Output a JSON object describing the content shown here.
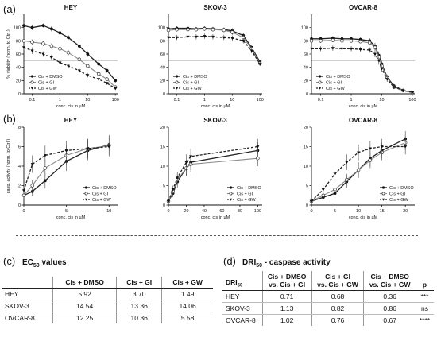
{
  "panels": {
    "a": "(a)",
    "b": "(b)",
    "c": "(c)",
    "d": "(d)"
  },
  "colors": {
    "ref_line": "#bdbdbd",
    "line": "#222222",
    "gi_line": "#8a8a8a",
    "separator": "#555555"
  },
  "chart_data": [
    {
      "id": "a-hey",
      "type": "line",
      "title": "HEY",
      "xlabel": "conc. cis in µM",
      "ylabel": "% viability (norm. to Ctrl.)",
      "xscale": "log",
      "xlim": [
        0.05,
        120
      ],
      "ylim": [
        0,
        120
      ],
      "xticks": [
        0.1,
        1,
        10,
        100
      ],
      "xtick_labels": [
        "0.1",
        "1",
        "10",
        "100"
      ],
      "yticks": [
        0,
        20,
        40,
        60,
        80,
        100
      ],
      "ytick_labels": [
        "0",
        "20",
        "40",
        "60",
        "80",
        "100"
      ],
      "ref_line": 50,
      "legend": [
        "Cis + DMSO",
        "Cis + GI",
        "Cis + GW"
      ],
      "legend_position": "bottom-left",
      "series": [
        {
          "name": "Cis + DMSO",
          "marker": "filled-circle",
          "style": "solid",
          "x": [
            0.05,
            0.1,
            0.25,
            0.5,
            1,
            2,
            5,
            10,
            25,
            50,
            100
          ],
          "y": [
            103,
            100,
            103,
            98,
            92,
            85,
            72,
            60,
            45,
            35,
            20
          ],
          "err": [
            5,
            4,
            3,
            4,
            4,
            4,
            3,
            4,
            4,
            3,
            3
          ]
        },
        {
          "name": "Cis + GI",
          "marker": "open-circle",
          "style": "solid-gray",
          "x": [
            0.05,
            0.1,
            0.25,
            0.5,
            1,
            2,
            5,
            10,
            25,
            50,
            100
          ],
          "y": [
            80,
            78,
            76,
            72,
            68,
            62,
            52,
            42,
            30,
            22,
            10
          ],
          "err": [
            5,
            4,
            4,
            4,
            4,
            4,
            3,
            3,
            3,
            3,
            2
          ]
        },
        {
          "name": "Cis + GW",
          "marker": "triangle",
          "style": "dashed",
          "x": [
            0.05,
            0.1,
            0.25,
            0.5,
            1,
            2,
            5,
            10,
            25,
            50,
            100
          ],
          "y": [
            70,
            65,
            60,
            55,
            47,
            42,
            35,
            28,
            22,
            16,
            8
          ],
          "err": [
            6,
            5,
            4,
            4,
            4,
            3,
            3,
            3,
            3,
            2,
            2
          ]
        }
      ]
    },
    {
      "id": "a-skov3",
      "type": "line",
      "title": "SKOV-3",
      "xlabel": "conc. cis in µM",
      "ylabel": "",
      "xscale": "log",
      "xlim": [
        0.05,
        120
      ],
      "ylim": [
        0,
        120
      ],
      "xticks": [
        0.1,
        1,
        10,
        100
      ],
      "xtick_labels": [
        "0.1",
        "1",
        "10",
        "100"
      ],
      "yticks": [
        0,
        20,
        40,
        60,
        80,
        100
      ],
      "ytick_labels": [
        "0",
        "20",
        "40",
        "60",
        "80",
        "100"
      ],
      "ref_line": 50,
      "legend": [
        "Cis + DMSO",
        "Cis + GI",
        "Cis + GW"
      ],
      "legend_position": "bottom-left",
      "series": [
        {
          "name": "Cis + DMSO",
          "marker": "filled-circle",
          "style": "solid",
          "x": [
            0.05,
            0.1,
            0.25,
            0.5,
            1,
            2,
            5,
            10,
            25,
            50,
            100
          ],
          "y": [
            98,
            99,
            99,
            98,
            99,
            98,
            97,
            95,
            88,
            70,
            48
          ],
          "err": [
            3,
            3,
            3,
            3,
            3,
            3,
            3,
            4,
            4,
            4,
            3
          ]
        },
        {
          "name": "Cis + GI",
          "marker": "open-circle",
          "style": "solid-gray",
          "x": [
            0.05,
            0.1,
            0.25,
            0.5,
            1,
            2,
            5,
            10,
            25,
            50,
            100
          ],
          "y": [
            96,
            97,
            97,
            97,
            98,
            97,
            96,
            93,
            85,
            68,
            46
          ],
          "err": [
            3,
            3,
            3,
            3,
            3,
            3,
            3,
            4,
            4,
            4,
            3
          ]
        },
        {
          "name": "Cis + GW",
          "marker": "triangle",
          "style": "dashed",
          "x": [
            0.05,
            0.1,
            0.25,
            0.5,
            1,
            2,
            5,
            10,
            25,
            50,
            100
          ],
          "y": [
            85,
            85,
            86,
            86,
            87,
            86,
            85,
            84,
            80,
            65,
            45
          ],
          "err": [
            4,
            4,
            4,
            4,
            4,
            4,
            4,
            4,
            4,
            4,
            3
          ]
        }
      ]
    },
    {
      "id": "a-ovcar8",
      "type": "line",
      "title": "OVCAR-8",
      "xlabel": "conc. cis in µM",
      "ylabel": "",
      "xscale": "log",
      "xlim": [
        0.05,
        120
      ],
      "ylim": [
        0,
        120
      ],
      "xticks": [
        0.1,
        1,
        10,
        100
      ],
      "xtick_labels": [
        "0.1",
        "1",
        "10",
        "100"
      ],
      "yticks": [
        0,
        20,
        40,
        60,
        80,
        100
      ],
      "ytick_labels": [
        "0",
        "20",
        "40",
        "60",
        "80",
        "100"
      ],
      "ref_line": 50,
      "legend": [
        "Cis + DMSO",
        "Cis + GI",
        "Cis + GW"
      ],
      "legend_position": "bottom-left",
      "series": [
        {
          "name": "Cis + DMSO",
          "marker": "filled-circle",
          "style": "solid",
          "x": [
            0.05,
            0.1,
            0.25,
            0.5,
            1,
            2,
            4,
            6,
            8,
            10,
            15,
            25,
            50,
            100
          ],
          "y": [
            83,
            83,
            84,
            83,
            83,
            82,
            80,
            72,
            58,
            45,
            25,
            12,
            5,
            2
          ],
          "err": [
            3,
            3,
            3,
            3,
            3,
            3,
            4,
            5,
            6,
            5,
            4,
            3,
            2,
            1
          ]
        },
        {
          "name": "Cis + GI",
          "marker": "open-circle",
          "style": "solid-gray",
          "x": [
            0.05,
            0.1,
            0.25,
            0.5,
            1,
            2,
            4,
            6,
            8,
            10,
            15,
            25,
            50,
            100
          ],
          "y": [
            80,
            80,
            81,
            80,
            80,
            79,
            77,
            70,
            55,
            42,
            24,
            10,
            5,
            2
          ],
          "err": [
            3,
            3,
            3,
            3,
            3,
            3,
            4,
            5,
            6,
            5,
            4,
            3,
            2,
            1
          ]
        },
        {
          "name": "Cis + GW",
          "marker": "triangle",
          "style": "dashed",
          "x": [
            0.05,
            0.1,
            0.25,
            0.5,
            1,
            2,
            4,
            6,
            8,
            10,
            15,
            25,
            50,
            100
          ],
          "y": [
            68,
            68,
            69,
            68,
            68,
            67,
            66,
            60,
            50,
            38,
            22,
            10,
            5,
            2
          ],
          "err": [
            4,
            4,
            4,
            4,
            4,
            4,
            4,
            5,
            6,
            5,
            4,
            3,
            2,
            1
          ]
        }
      ]
    },
    {
      "id": "b-hey",
      "type": "line",
      "title": "HEY",
      "xlabel": "conc. cis in µM",
      "ylabel": "casp. activity (norm. to Ctrl.)",
      "xscale": "linear",
      "xlim": [
        0,
        11
      ],
      "ylim": [
        0,
        8
      ],
      "xticks": [
        0,
        5,
        10
      ],
      "xtick_labels": [
        "0",
        "5",
        "10"
      ],
      "yticks": [
        0,
        2,
        4,
        6,
        8
      ],
      "ytick_labels": [
        "0",
        "2",
        "4",
        "6",
        "8"
      ],
      "legend": [
        "Cis + DMSO",
        "Cis + GI",
        "Cis + GW"
      ],
      "legend_position": "bottom-right",
      "series": [
        {
          "name": "Cis + DMSO",
          "marker": "filled-circle",
          "style": "solid",
          "x": [
            0,
            1,
            2.5,
            5,
            7.5,
            10
          ],
          "y": [
            1,
            1.4,
            2.5,
            4.5,
            5.6,
            6.2
          ],
          "err": [
            0.3,
            0.5,
            0.8,
            1,
            1,
            1
          ]
        },
        {
          "name": "Cis + GI",
          "marker": "open-circle",
          "style": "solid-gray",
          "x": [
            0,
            1,
            2.5,
            5,
            7.5,
            10
          ],
          "y": [
            1,
            2,
            3.8,
            5.1,
            5.8,
            6.1
          ],
          "err": [
            0.3,
            0.6,
            0.9,
            1,
            1,
            1
          ]
        },
        {
          "name": "Cis + GW",
          "marker": "triangle",
          "style": "dashed",
          "x": [
            0,
            1,
            2.5,
            5,
            7.5,
            10
          ],
          "y": [
            1.5,
            4.2,
            5.1,
            5.6,
            5.8,
            6.0
          ],
          "err": [
            0.4,
            0.9,
            1,
            1,
            1,
            1
          ]
        }
      ]
    },
    {
      "id": "b-skov3",
      "type": "line",
      "title": "SKOV-3",
      "xlabel": "conc. cis in µM",
      "ylabel": "",
      "xscale": "linear",
      "xlim": [
        0,
        105
      ],
      "ylim": [
        0,
        20
      ],
      "xticks": [
        0,
        20,
        40,
        60,
        80,
        100
      ],
      "xtick_labels": [
        "0",
        "20",
        "40",
        "60",
        "80",
        "100"
      ],
      "yticks": [
        0,
        5,
        10,
        15,
        20
      ],
      "ytick_labels": [
        "0",
        "5",
        "10",
        "15",
        "20"
      ],
      "legend": [
        "Cis + DMSO",
        "Cis + GI",
        "Cis + GW"
      ],
      "legend_position": "bottom-right",
      "series": [
        {
          "name": "Cis + DMSO",
          "marker": "filled-circle",
          "style": "solid",
          "x": [
            0,
            5,
            10,
            20,
            25,
            100
          ],
          "y": [
            1,
            3,
            6,
            9.5,
            11,
            14
          ],
          "err": [
            0.3,
            1,
            1.5,
            2,
            2,
            2
          ]
        },
        {
          "name": "Cis + GI",
          "marker": "open-circle",
          "style": "solid-gray",
          "x": [
            0,
            5,
            10,
            20,
            25,
            100
          ],
          "y": [
            1,
            3.5,
            6.5,
            9.5,
            10.5,
            12
          ],
          "err": [
            0.3,
            1,
            1.5,
            2,
            2,
            2
          ]
        },
        {
          "name": "Cis + GW",
          "marker": "triangle",
          "style": "dashed",
          "x": [
            0,
            5,
            10,
            20,
            25,
            100
          ],
          "y": [
            1,
            4,
            7,
            11,
            12.5,
            15
          ],
          "err": [
            0.3,
            1,
            1.5,
            2,
            2,
            2
          ]
        }
      ]
    },
    {
      "id": "b-ovcar8",
      "type": "line",
      "title": "OVCAR-8",
      "xlabel": "conc. cis in µM",
      "ylabel": "",
      "xscale": "linear",
      "xlim": [
        0,
        22
      ],
      "ylim": [
        0,
        20
      ],
      "xticks": [
        0,
        5,
        10,
        15,
        20
      ],
      "xtick_labels": [
        "0",
        "5",
        "10",
        "15",
        "20"
      ],
      "yticks": [
        0,
        5,
        10,
        15,
        20
      ],
      "ytick_labels": [
        "0",
        "5",
        "10",
        "15",
        "20"
      ],
      "legend": [
        "Cis + DMSO",
        "Cis + GI",
        "Cis + GW"
      ],
      "legend_position": "bottom-right",
      "series": [
        {
          "name": "Cis + DMSO",
          "marker": "filled-circle",
          "style": "solid",
          "x": [
            0,
            2.5,
            5,
            7.5,
            10,
            12.5,
            15,
            20
          ],
          "y": [
            1,
            2,
            3,
            6,
            9,
            12,
            14,
            17
          ],
          "err": [
            0.3,
            0.6,
            1,
            1.5,
            2,
            2,
            2,
            2
          ]
        },
        {
          "name": "Cis + GI",
          "marker": "open-circle",
          "style": "solid-gray",
          "x": [
            0,
            2.5,
            5,
            7.5,
            10,
            12.5,
            15,
            20
          ],
          "y": [
            1,
            2.5,
            4,
            6.5,
            9,
            11.5,
            13.5,
            16
          ],
          "err": [
            0.3,
            0.6,
            1,
            1.5,
            2,
            2,
            2,
            2
          ]
        },
        {
          "name": "Cis + GW",
          "marker": "triangle",
          "style": "dashed",
          "x": [
            0,
            2.5,
            5,
            7.5,
            10,
            12.5,
            15,
            20
          ],
          "y": [
            1,
            4,
            8,
            11,
            13.5,
            14.5,
            15,
            15
          ],
          "err": [
            0.3,
            1,
            1.5,
            2,
            2,
            2,
            2,
            2
          ]
        }
      ]
    },
    {
      "id": "c-ec50",
      "type": "table",
      "title": "EC50 values",
      "title_main": "EC",
      "title_sub": "50",
      "title_rest": " values",
      "columns": [
        "",
        "Cis + DMSO",
        "Cis + GI",
        "Cis + GW"
      ],
      "rows": [
        [
          "HEY",
          "5.92",
          "3.70",
          "1.49"
        ],
        [
          "SKOV-3",
          "14.54",
          "13.36",
          "14.06"
        ],
        [
          "OVCAR-8",
          "12.25",
          "10.36",
          "5.58"
        ]
      ]
    },
    {
      "id": "d-dri50",
      "type": "table",
      "title": "DRI50 - caspase activity",
      "title_main": "DRI",
      "title_sub": "50",
      "title_rest": " - caspase activity",
      "columns": [
        "DRI50",
        "Cis + DMSO vs. Cis + GI",
        "Cis + GI vs. Cis + GW",
        "Cis + DMSO vs. Cis + GW",
        "p"
      ],
      "columns_lines": [
        [
          "DRI50"
        ],
        [
          "Cis + DMSO",
          "vs. Cis + GI"
        ],
        [
          "Cis + GI",
          "vs. Cis + GW"
        ],
        [
          "Cis + DMSO",
          "vs. Cis + GW"
        ],
        [
          "p"
        ]
      ],
      "rows": [
        [
          "HEY",
          "0.71",
          "0.68",
          "0.36",
          "***"
        ],
        [
          "SKOV-3",
          "1.13",
          "0.82",
          "0.86",
          "ns"
        ],
        [
          "OVCAR-8",
          "1.02",
          "0.76",
          "0.67",
          "****"
        ]
      ]
    }
  ]
}
